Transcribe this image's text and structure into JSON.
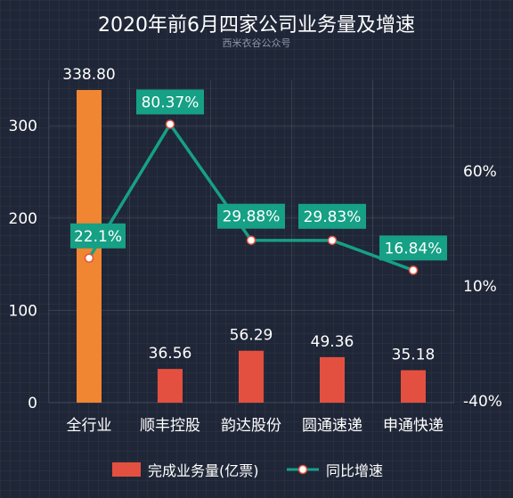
{
  "title": "2020年前6月四家公司业务量及增速",
  "subtitle": "西米衣谷公众号",
  "chart_data": {
    "type": "bar+line",
    "categories": [
      "全行业",
      "顺丰控股",
      "韵达股份",
      "圆通速递",
      "申通快递"
    ],
    "series": [
      {
        "name": "完成业务量(亿票)",
        "type": "bar",
        "axis": "left",
        "values": [
          338.8,
          36.56,
          56.29,
          49.36,
          35.18
        ],
        "value_labels": [
          "338.80",
          "36.56",
          "56.29",
          "49.36",
          "35.18"
        ],
        "colors": [
          "#f08532",
          "#e4503f",
          "#e4503f",
          "#e4503f",
          "#e4503f"
        ]
      },
      {
        "name": "同比增速",
        "type": "line",
        "axis": "right",
        "values": [
          22.1,
          80.37,
          29.88,
          29.83,
          16.84
        ],
        "value_labels": [
          "22.1%",
          "80.37%",
          "29.88%",
          "29.83%",
          "16.84%"
        ],
        "color": "#16a085"
      }
    ],
    "left_axis": {
      "ticks": [
        0,
        100,
        200,
        300
      ],
      "tick_labels": [
        "0",
        "100",
        "200",
        "300"
      ]
    },
    "right_axis": {
      "ticks": [
        -40,
        10,
        60
      ],
      "tick_labels": [
        "-40%",
        "10%",
        "60%"
      ]
    },
    "legend_position": "bottom",
    "grid": true
  }
}
